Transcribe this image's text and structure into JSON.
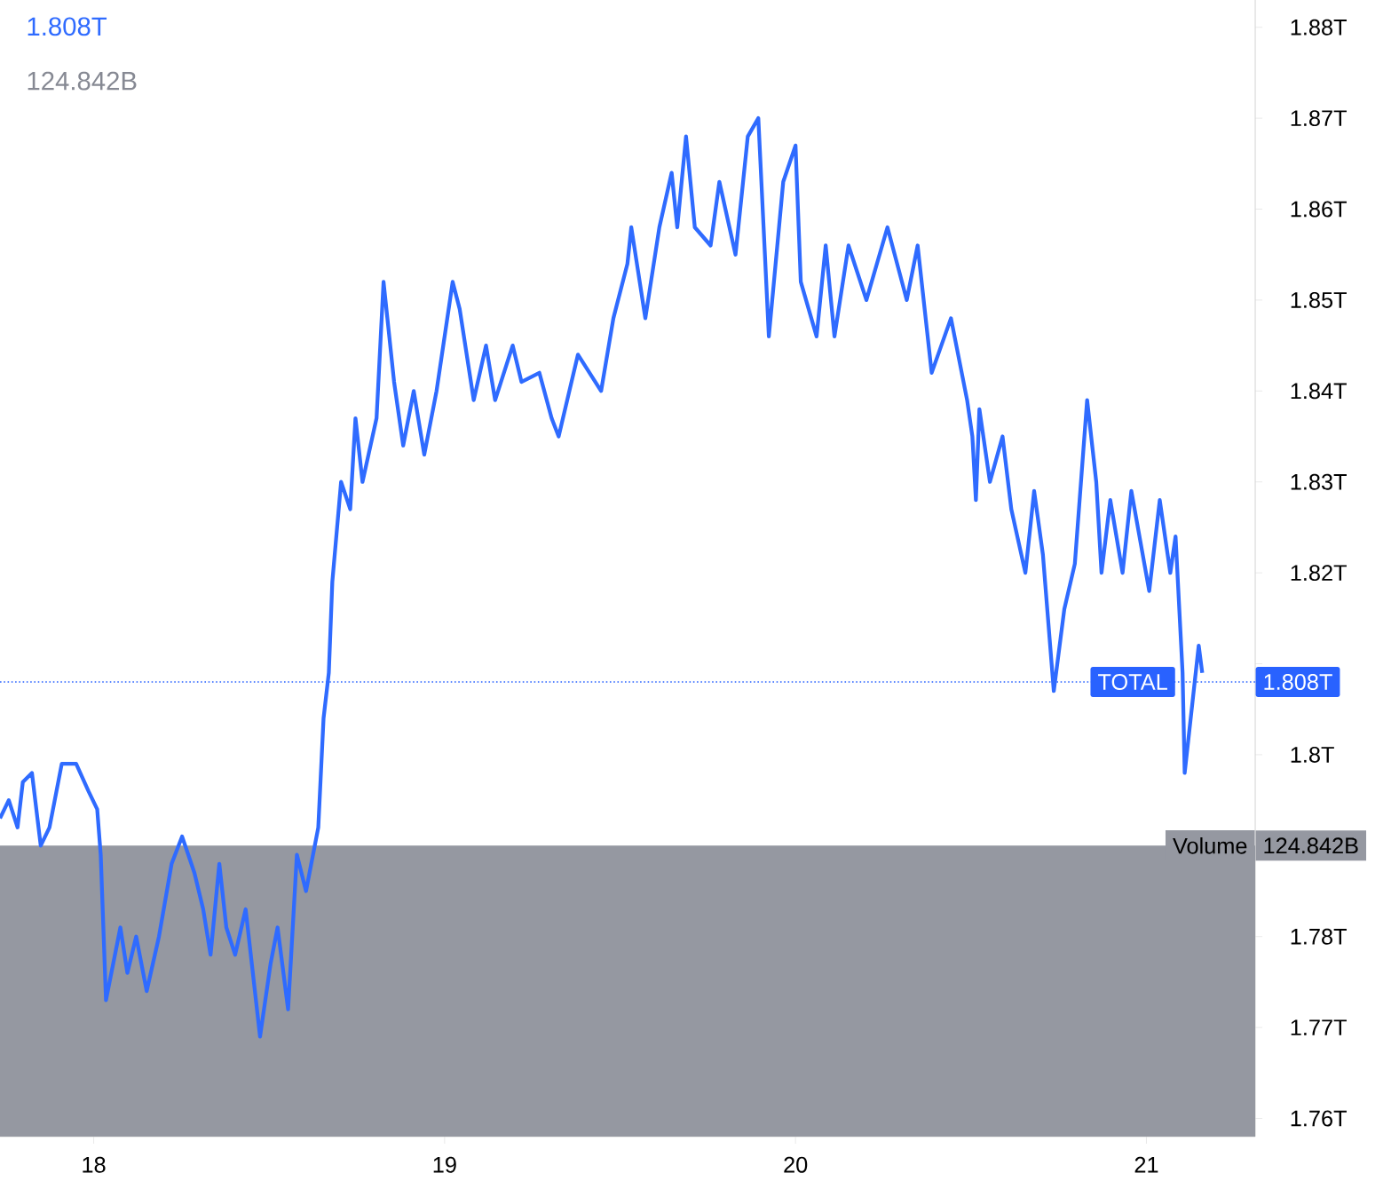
{
  "chart_data": {
    "type": "line",
    "title": "1.808T",
    "subtitle": "124.842B",
    "xlim": [
      17.733,
      21.31
    ],
    "xticks": [
      18,
      19,
      20,
      21
    ],
    "ylim": [
      1.758,
      1.883
    ],
    "yticks": [
      {
        "value": 1.76,
        "label": "1.76T"
      },
      {
        "value": 1.77,
        "label": "1.77T"
      },
      {
        "value": 1.78,
        "label": "1.78T"
      },
      {
        "value": 1.8,
        "label": "1.8T"
      },
      {
        "value": 1.81,
        "label": null
      },
      {
        "value": 1.82,
        "label": "1.82T"
      },
      {
        "value": 1.83,
        "label": "1.83T"
      },
      {
        "value": 1.84,
        "label": "1.84T"
      },
      {
        "value": 1.85,
        "label": "1.85T"
      },
      {
        "value": 1.86,
        "label": "1.86T"
      },
      {
        "value": 1.87,
        "label": "1.87T"
      },
      {
        "value": 1.88,
        "label": "1.88T"
      }
    ],
    "series": [
      {
        "color": "#2f6bff",
        "x": [
          17.733,
          17.758,
          17.783,
          17.798,
          17.824,
          17.849,
          17.874,
          17.909,
          17.95,
          17.985,
          18.01,
          18.02,
          18.035,
          18.076,
          18.096,
          18.121,
          18.151,
          18.186,
          18.222,
          18.252,
          18.287,
          18.312,
          18.333,
          18.358,
          18.378,
          18.403,
          18.433,
          18.474,
          18.504,
          18.524,
          18.554,
          18.579,
          18.605,
          18.64,
          18.655,
          18.67,
          18.68,
          18.705,
          18.731,
          18.746,
          18.766,
          18.806,
          18.826,
          18.856,
          18.882,
          18.912,
          18.942,
          18.977,
          19.023,
          19.043,
          19.083,
          19.118,
          19.144,
          19.194,
          19.219,
          19.27,
          19.305,
          19.325,
          19.38,
          19.446,
          19.481,
          19.521,
          19.532,
          19.572,
          19.612,
          19.647,
          19.663,
          19.688,
          19.713,
          19.758,
          19.783,
          19.829,
          19.864,
          19.894,
          19.924,
          19.965,
          20.0,
          20.015,
          20.06,
          20.086,
          20.111,
          20.151,
          20.202,
          20.262,
          20.317,
          20.348,
          20.388,
          20.443,
          20.489,
          20.504,
          20.514,
          20.524,
          20.554,
          20.59,
          20.615,
          20.655,
          20.68,
          20.705,
          20.736,
          20.766,
          20.796,
          20.831,
          20.857,
          20.872,
          20.897,
          20.932,
          20.957,
          21.008,
          21.038,
          21.068,
          21.083,
          21.103,
          21.109,
          21.129,
          21.149,
          21.159
        ],
        "values": [
          1.793,
          1.795,
          1.792,
          1.797,
          1.798,
          1.79,
          1.792,
          1.799,
          1.799,
          1.796,
          1.794,
          1.789,
          1.773,
          1.781,
          1.776,
          1.78,
          1.774,
          1.78,
          1.788,
          1.791,
          1.787,
          1.783,
          1.778,
          1.788,
          1.781,
          1.778,
          1.783,
          1.769,
          1.777,
          1.781,
          1.772,
          1.789,
          1.785,
          1.792,
          1.804,
          1.809,
          1.819,
          1.83,
          1.827,
          1.837,
          1.83,
          1.837,
          1.852,
          1.841,
          1.834,
          1.84,
          1.833,
          1.84,
          1.852,
          1.849,
          1.839,
          1.845,
          1.839,
          1.845,
          1.841,
          1.842,
          1.837,
          1.835,
          1.844,
          1.84,
          1.848,
          1.854,
          1.858,
          1.848,
          1.858,
          1.864,
          1.858,
          1.868,
          1.858,
          1.856,
          1.863,
          1.855,
          1.868,
          1.87,
          1.846,
          1.863,
          1.867,
          1.852,
          1.846,
          1.856,
          1.846,
          1.856,
          1.85,
          1.858,
          1.85,
          1.856,
          1.842,
          1.848,
          1.839,
          1.835,
          1.828,
          1.838,
          1.83,
          1.835,
          1.827,
          1.82,
          1.829,
          1.822,
          1.807,
          1.816,
          1.821,
          1.839,
          1.83,
          1.82,
          1.828,
          1.82,
          1.829,
          1.818,
          1.828,
          1.82,
          1.824,
          1.809,
          1.798,
          1.805,
          1.812,
          1.809
        ]
      }
    ],
    "ref_lines": [
      {
        "axis": "y",
        "value": 1.808,
        "label": "TOTAL",
        "color": "#2962ff",
        "line_style": "dotted"
      }
    ],
    "bands": [
      {
        "axis": "y",
        "from": 1.758,
        "to": 1.79,
        "label": "Volume",
        "color": "#9598a1"
      }
    ],
    "annotations": [
      "1.808T",
      "124.842B"
    ]
  }
}
